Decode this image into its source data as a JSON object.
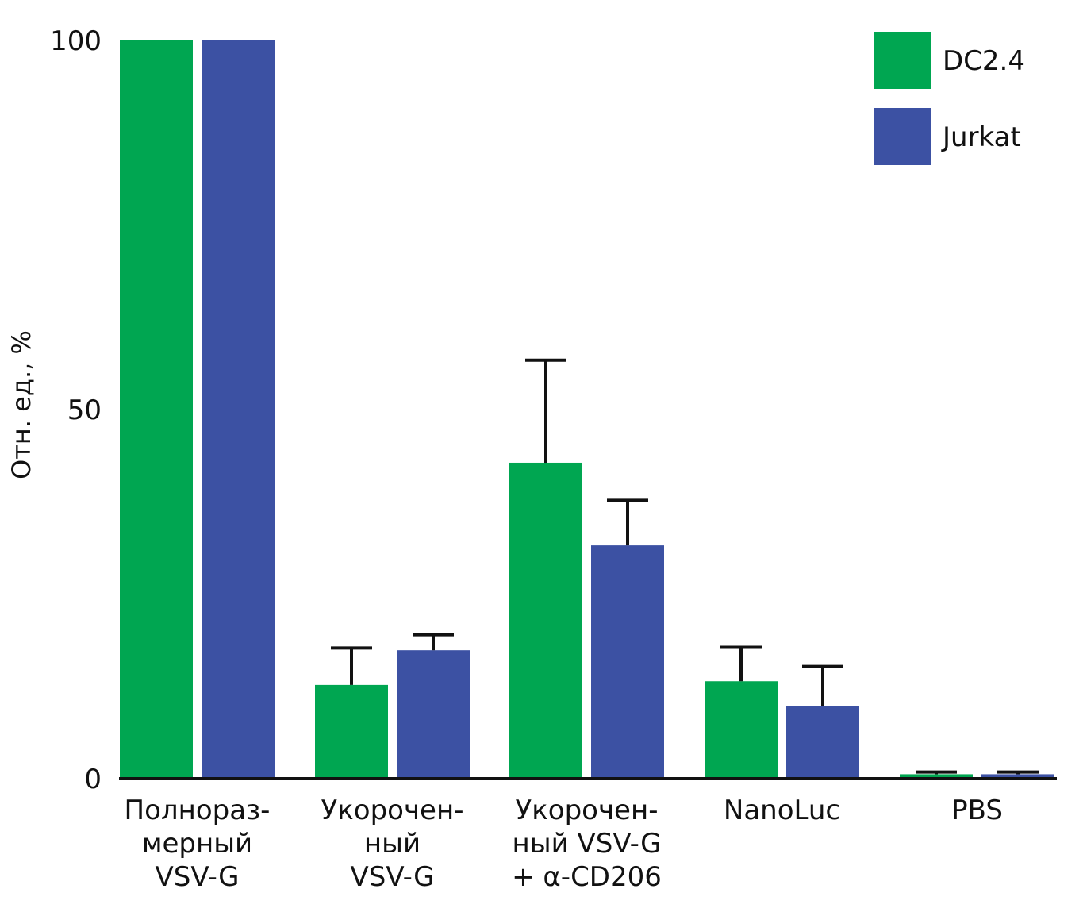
{
  "chart_data": {
    "type": "bar",
    "title": "",
    "ylabel": "Отн. ед., %",
    "xlabel": "",
    "ylim": [
      0,
      100
    ],
    "yticks": [
      0,
      50,
      100
    ],
    "categories": [
      [
        "Полнораз-",
        "мерный",
        "VSV-G"
      ],
      [
        "Укорочен-",
        "ный",
        "VSV-G"
      ],
      [
        "Укорочен-",
        "ный VSV-G",
        "+ α-CD206"
      ],
      [
        "NanoLuc"
      ],
      [
        "PBS"
      ]
    ],
    "series": [
      {
        "name": "DC2.4",
        "color": "#00a651",
        "values": [
          100,
          12.7,
          42.8,
          13.2,
          0.6
        ],
        "errors": [
          0,
          5.0,
          13.9,
          4.6,
          0.3
        ]
      },
      {
        "name": "Jurkat",
        "color": "#3c51a3",
        "values": [
          100,
          17.4,
          31.6,
          9.8,
          0.6
        ],
        "errors": [
          0,
          2.1,
          6.1,
          5.4,
          0.3
        ]
      }
    ],
    "legend_position": "top-right",
    "grid": false
  }
}
